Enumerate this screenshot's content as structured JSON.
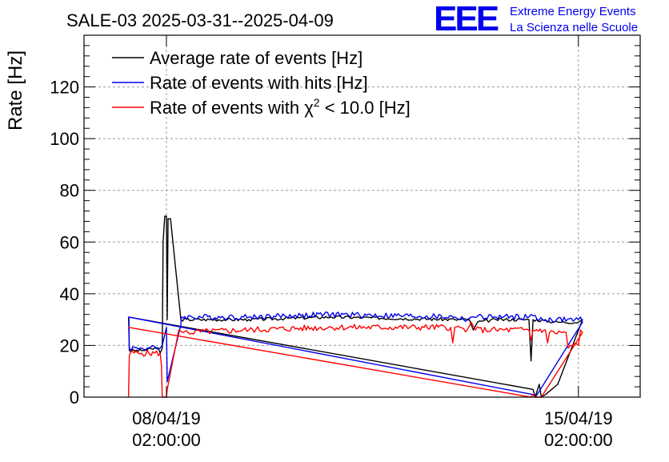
{
  "chart_data": {
    "type": "line",
    "title": "SALE-03 2025-03-31--2025-04-09",
    "logo": {
      "text": "EEE",
      "line1": "Extreme Energy Events",
      "line2": "La Scienza nelle Scuole"
    },
    "ylabel": "Rate [Hz]",
    "ylim": [
      0,
      140
    ],
    "yticks": [
      0,
      20,
      40,
      60,
      80,
      100,
      120
    ],
    "xlim_days": [
      0,
      13.5
    ],
    "xticks": [
      {
        "day": 2.0,
        "line1": "08/04/19",
        "line2": "02:00:00"
      },
      {
        "day": 12.0,
        "line1": "15/04/19",
        "line2": "02:00:00"
      }
    ],
    "grid": true,
    "legend_placement": "top-left",
    "legend": [
      {
        "label": "Average rate of events [Hz]",
        "color": "#000000"
      },
      {
        "label": "Rate of events with hits [Hz]",
        "color": "#0000ee"
      },
      {
        "label_prefix": "Rate of events with ",
        "label_chi": "χ",
        "label_sup": "2",
        "label_suffix": " < 10.0 [Hz]",
        "color": "#ff0000"
      }
    ],
    "series": [
      {
        "name": "Average rate of events [Hz]",
        "color": "#000000",
        "noise": 0.6,
        "points": [
          [
            1.08,
            31
          ],
          [
            1.09,
            31
          ],
          [
            1.1,
            18
          ],
          [
            1.4,
            18
          ],
          [
            1.8,
            19
          ],
          [
            1.85,
            17
          ],
          [
            1.9,
            19
          ],
          [
            1.92,
            60
          ],
          [
            1.96,
            70
          ],
          [
            2.0,
            70
          ],
          [
            2.02,
            30
          ],
          [
            2.04,
            69
          ],
          [
            2.1,
            69
          ],
          [
            2.35,
            30
          ],
          [
            4.0,
            30
          ],
          [
            6.0,
            31
          ],
          [
            9.0,
            30
          ],
          [
            9.35,
            30
          ],
          [
            9.45,
            26
          ],
          [
            9.55,
            29
          ],
          [
            10.0,
            30
          ],
          [
            10.8,
            30
          ],
          [
            10.85,
            14
          ],
          [
            10.9,
            30
          ],
          [
            11.5,
            29
          ],
          [
            12.0,
            29
          ],
          [
            12.1,
            30
          ],
          [
            12.1,
            30
          ],
          [
            11.5,
            5
          ],
          [
            11.2,
            1
          ],
          [
            11.1,
            0
          ],
          [
            11.05,
            5
          ],
          [
            10.95,
            0
          ],
          [
            10.9,
            3
          ],
          [
            1.08,
            31
          ]
        ]
      },
      {
        "name": "Rate of events with hits [Hz]",
        "color": "#0000ee",
        "noise": 1.1,
        "points": [
          [
            1.08,
            31
          ],
          [
            1.1,
            19
          ],
          [
            1.4,
            19
          ],
          [
            1.85,
            19
          ],
          [
            1.9,
            20
          ],
          [
            2.0,
            27
          ],
          [
            2.02,
            6
          ],
          [
            2.35,
            28
          ],
          [
            2.36,
            31
          ],
          [
            4.0,
            31
          ],
          [
            6.0,
            32
          ],
          [
            9.0,
            31
          ],
          [
            9.3,
            30
          ],
          [
            9.4,
            31
          ],
          [
            10.0,
            31
          ],
          [
            10.8,
            31
          ],
          [
            10.85,
            32
          ],
          [
            11.0,
            30
          ],
          [
            12.0,
            30
          ],
          [
            12.05,
            31
          ],
          [
            12.1,
            29
          ],
          [
            11.0,
            1
          ],
          [
            10.95,
            0
          ],
          [
            10.9,
            1
          ],
          [
            1.08,
            31
          ]
        ]
      },
      {
        "name": "Rate of events with χ2 < 10.0 [Hz]",
        "color": "#ff0000",
        "noise": 1.2,
        "points": [
          [
            1.08,
            0
          ],
          [
            1.1,
            16
          ],
          [
            1.12,
            17
          ],
          [
            1.4,
            17
          ],
          [
            1.85,
            17
          ],
          [
            1.88,
            12
          ],
          [
            1.9,
            0
          ],
          [
            1.95,
            0
          ],
          [
            2.0,
            0
          ],
          [
            2.02,
            3
          ],
          [
            2.3,
            26
          ],
          [
            2.4,
            25
          ],
          [
            4.0,
            26
          ],
          [
            6.0,
            27
          ],
          [
            8.9,
            27
          ],
          [
            8.95,
            21
          ],
          [
            9.0,
            27
          ],
          [
            9.3,
            26
          ],
          [
            9.4,
            29
          ],
          [
            9.5,
            26
          ],
          [
            10.0,
            26
          ],
          [
            10.8,
            26
          ],
          [
            10.85,
            22
          ],
          [
            10.9,
            26
          ],
          [
            11.2,
            26
          ],
          [
            11.25,
            21
          ],
          [
            11.3,
            25
          ],
          [
            11.7,
            25
          ],
          [
            11.75,
            19
          ],
          [
            11.8,
            20
          ],
          [
            12.0,
            20
          ],
          [
            12.05,
            26
          ],
          [
            12.1,
            25
          ],
          [
            11.1,
            0
          ],
          [
            10.95,
            0
          ],
          [
            10.9,
            1
          ],
          [
            10.85,
            0
          ],
          [
            1.08,
            27
          ]
        ]
      }
    ]
  }
}
